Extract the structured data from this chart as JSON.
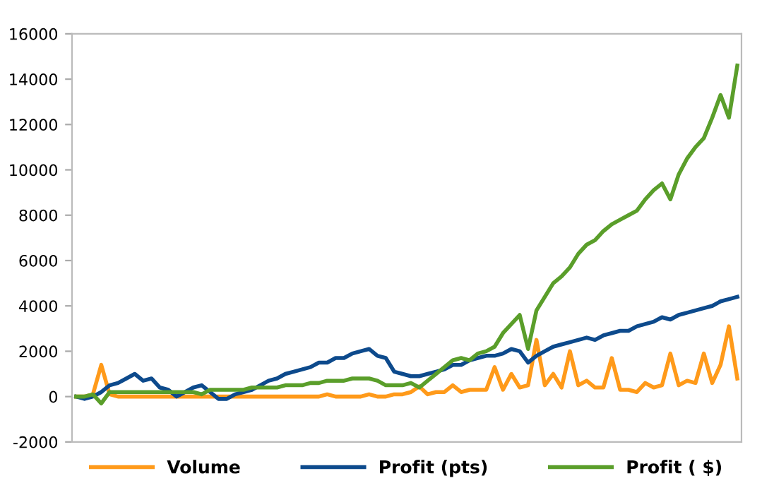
{
  "chart_data": {
    "type": "line",
    "categories": [
      null,
      null,
      null,
      null,
      null,
      null,
      null,
      null,
      null,
      null,
      null,
      null,
      null,
      null,
      null,
      null,
      null,
      null,
      null,
      null,
      null,
      null,
      null,
      null,
      null,
      null,
      null,
      null,
      null,
      null,
      null,
      null,
      null,
      null,
      null,
      null,
      null,
      null,
      null,
      null,
      null,
      null,
      null,
      null,
      null,
      null,
      null,
      null,
      null,
      null,
      null,
      null,
      null,
      null,
      null,
      null,
      null,
      null,
      null,
      null,
      null,
      null,
      null,
      null,
      null,
      null,
      null,
      null,
      null,
      null,
      null,
      null,
      null,
      null,
      null,
      null,
      null,
      null,
      null,
      null
    ],
    "series": [
      {
        "name": "Volume",
        "color": "#ff9a1a",
        "values": [
          0,
          0,
          100,
          1400,
          100,
          0,
          0,
          0,
          0,
          0,
          0,
          0,
          0,
          0,
          0,
          0,
          0,
          0,
          0,
          0,
          0,
          0,
          0,
          0,
          0,
          0,
          0,
          0,
          0,
          0,
          100,
          0,
          0,
          0,
          0,
          100,
          0,
          0,
          100,
          100,
          200,
          450,
          100,
          200,
          200,
          500,
          200,
          300,
          300,
          300,
          1300,
          300,
          1000,
          400,
          500,
          2500,
          500,
          1000,
          400,
          2000,
          500,
          700,
          400,
          400,
          1700,
          300,
          300,
          200,
          600,
          400,
          500,
          1900,
          500,
          700,
          600,
          1900,
          600,
          1400,
          3100,
          800
        ]
      },
      {
        "name": "Profit (pts)",
        "color": "#0d4a8c",
        "values": [
          0,
          -100,
          0,
          200,
          500,
          600,
          800,
          1000,
          700,
          800,
          400,
          300,
          0,
          200,
          400,
          500,
          200,
          -100,
          -100,
          100,
          200,
          300,
          500,
          700,
          800,
          1000,
          1100,
          1200,
          1300,
          1500,
          1500,
          1700,
          1700,
          1900,
          2000,
          2100,
          1800,
          1700,
          1100,
          1000,
          900,
          900,
          1000,
          1100,
          1200,
          1400,
          1400,
          1600,
          1700,
          1800,
          1800,
          1900,
          2100,
          2000,
          1500,
          1800,
          2000,
          2200,
          2300,
          2400,
          2500,
          2600,
          2500,
          2700,
          2800,
          2900,
          2900,
          3100,
          3200,
          3300,
          3500,
          3400,
          3600,
          3700,
          3800,
          3900,
          4000,
          4200,
          4300,
          4400
        ]
      },
      {
        "name": "Profit ( $)",
        "color": "#5a9e2a",
        "values": [
          0,
          0,
          100,
          -300,
          200,
          200,
          200,
          200,
          200,
          200,
          200,
          200,
          200,
          200,
          200,
          100,
          300,
          300,
          300,
          300,
          300,
          400,
          400,
          400,
          400,
          500,
          500,
          500,
          600,
          600,
          700,
          700,
          700,
          800,
          800,
          800,
          700,
          500,
          500,
          500,
          600,
          400,
          700,
          1000,
          1300,
          1600,
          1700,
          1600,
          1900,
          2000,
          2200,
          2800,
          3200,
          3600,
          2100,
          3800,
          4400,
          5000,
          5300,
          5700,
          6300,
          6700,
          6900,
          7300,
          7600,
          7800,
          8000,
          8200,
          8700,
          9100,
          9400,
          8700,
          9800,
          10500,
          11000,
          11400,
          12300,
          13300,
          12300,
          14600
        ]
      }
    ],
    "ylim": [
      -2000,
      16000
    ],
    "yticks": [
      -2000,
      0,
      2000,
      4000,
      6000,
      8000,
      10000,
      12000,
      14000,
      16000
    ],
    "tick_labels": "y",
    "grid": false,
    "legend": "bottom",
    "marker": "none",
    "line_style": "solid"
  }
}
